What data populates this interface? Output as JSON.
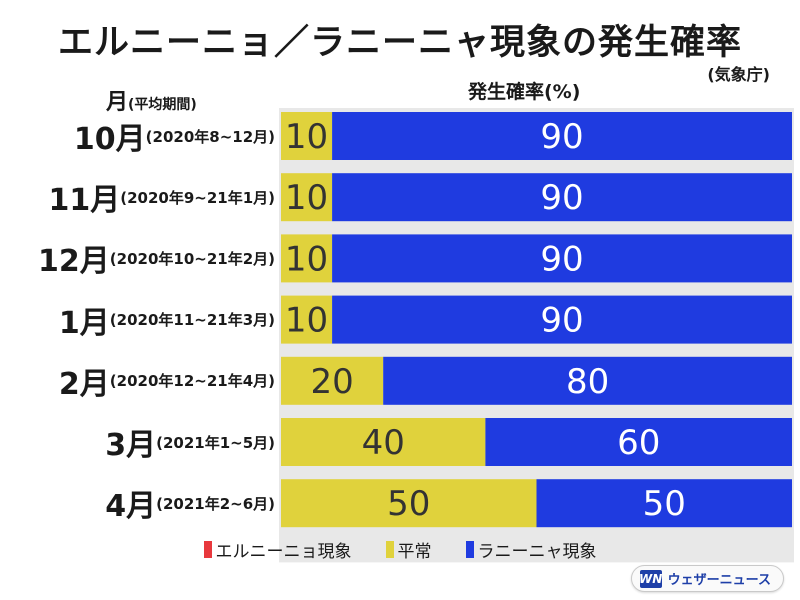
{
  "title": "エルニーニョ／ラニーニャ現象の発生確率",
  "source": "(気象庁)",
  "month_header": {
    "label": "月",
    "sub": "(平均期間)"
  },
  "value_header": "発生確率(%)",
  "rows": [
    {
      "month": "10月",
      "period": "(2020年8~12月)"
    },
    {
      "month": "11月",
      "period": "(2020年9~21年1月)"
    },
    {
      "month": "12月",
      "period": "(2020年10~21年2月)"
    },
    {
      "month": "1月",
      "period": "(2020年11~21年3月)"
    },
    {
      "month": "2月",
      "period": "(2020年12~21年4月)"
    },
    {
      "month": "3月",
      "period": "(2021年1~5月)"
    },
    {
      "month": "4月",
      "period": "(2021年2~6月)"
    }
  ],
  "legend": [
    {
      "label": "エルニーニョ現象",
      "color": "#e8383d"
    },
    {
      "label": "平常",
      "color": "#e0d23c"
    },
    {
      "label": "ラニーニャ現象",
      "color": "#1f3be0"
    }
  ],
  "logo": {
    "mark": "WN",
    "text": "ウェザーニュース"
  },
  "chart_data": {
    "type": "bar",
    "stacked": true,
    "orientation": "horizontal",
    "title": "エルニーニョ／ラニーニャ現象の発生確率",
    "xlabel": "発生確率(%)",
    "ylabel": "月(平均期間)",
    "xlim": [
      0,
      100
    ],
    "categories": [
      "10月",
      "11月",
      "12月",
      "1月",
      "2月",
      "3月",
      "4月"
    ],
    "series": [
      {
        "name": "エルニーニョ現象",
        "color": "#e8383d",
        "values": [
          0,
          0,
          0,
          0,
          0,
          0,
          0
        ]
      },
      {
        "name": "平常",
        "color": "#e0d23c",
        "values": [
          10,
          10,
          10,
          10,
          20,
          40,
          50
        ]
      },
      {
        "name": "ラニーニャ現象",
        "color": "#1f3be0",
        "values": [
          90,
          90,
          90,
          90,
          80,
          60,
          50
        ]
      }
    ]
  }
}
